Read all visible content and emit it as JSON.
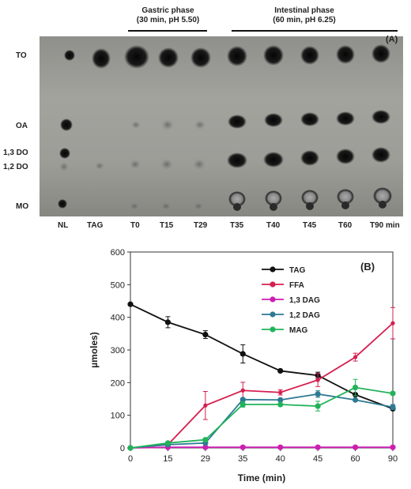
{
  "panel_a": {
    "label": "(A)",
    "phases": [
      {
        "title": "Gastric phase",
        "subtitle": "(30 min, pH 5.50)"
      },
      {
        "title": "Intestinal phase",
        "subtitle": "(60 min, pH 6.25)"
      }
    ],
    "row_labels": [
      "TO",
      "OA",
      "1,3 DO",
      "1,2 DO",
      "MO"
    ],
    "lane_labels": [
      "NL",
      "TAG",
      "T0",
      "T15",
      "T29",
      "T35",
      "T40",
      "T45",
      "T60",
      "T90 min"
    ]
  },
  "chart_data": {
    "type": "line",
    "label": "(B)",
    "xlabel": "Time (min)",
    "ylabel": "µmoles)",
    "x": [
      0,
      15,
      29,
      35,
      40,
      45,
      60,
      90
    ],
    "x_ticks": [
      "0",
      "15",
      "29",
      "35",
      "40",
      "45",
      "60",
      "90"
    ],
    "ylim": [
      0,
      600
    ],
    "y_ticks": [
      "0",
      "100",
      "200",
      "300",
      "400",
      "500",
      "600"
    ],
    "legend_position": "top-right",
    "series": [
      {
        "name": "TAG",
        "color": "#111111",
        "values": [
          440,
          385,
          347,
          288,
          236,
          222,
          163,
          120
        ],
        "errors": [
          0,
          17,
          12,
          28,
          0,
          10,
          0,
          0
        ]
      },
      {
        "name": "FFA",
        "color": "#d61f4f",
        "values": [
          0,
          10,
          130,
          176,
          170,
          208,
          278,
          382
        ],
        "errors": [
          0,
          0,
          43,
          25,
          8,
          20,
          12,
          48
        ]
      },
      {
        "name": "1,3 DAG",
        "color": "#cc1fb0",
        "values": [
          0,
          2,
          2,
          2,
          2,
          2,
          2,
          2
        ],
        "errors": [
          0,
          0,
          0,
          0,
          0,
          0,
          0,
          0
        ]
      },
      {
        "name": "1,2 DAG",
        "color": "#2e7a94",
        "values": [
          0,
          10,
          15,
          148,
          147,
          165,
          147,
          125
        ],
        "errors": [
          0,
          0,
          0,
          0,
          0,
          10,
          0,
          8
        ]
      },
      {
        "name": "MAG",
        "color": "#22b35a",
        "values": [
          0,
          15,
          25,
          133,
          133,
          128,
          185,
          167
        ],
        "errors": [
          0,
          0,
          0,
          8,
          0,
          15,
          25,
          0
        ]
      }
    ]
  }
}
